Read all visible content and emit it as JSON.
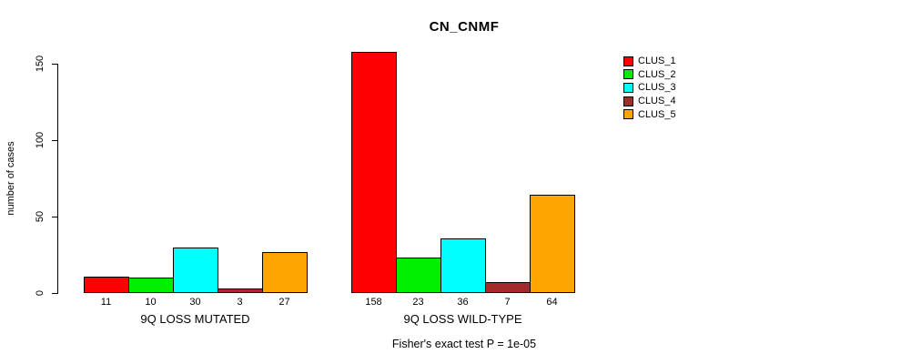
{
  "chart_data": {
    "type": "bar",
    "title": "CN_CNMF",
    "ylabel": "number of cases",
    "xlabel": "",
    "yticks": [
      0,
      50,
      100,
      150
    ],
    "ylim": [
      0,
      150
    ],
    "grid": false,
    "legend_position": "right",
    "series": [
      {
        "name": "CLUS_1",
        "color": "#ff0000"
      },
      {
        "name": "CLUS_2",
        "color": "#00ee00"
      },
      {
        "name": "CLUS_3",
        "color": "#00ffff"
      },
      {
        "name": "CLUS_4",
        "color": "#a52a2a"
      },
      {
        "name": "CLUS_5",
        "color": "#ffa500"
      }
    ],
    "groups": [
      {
        "label": "9Q LOSS MUTATED",
        "values": [
          11,
          10,
          30,
          3,
          27
        ]
      },
      {
        "label": "9Q LOSS WILD-TYPE",
        "values": [
          158,
          23,
          36,
          7,
          64
        ]
      }
    ],
    "annotation": "Fisher's exact test P = 1e-05"
  }
}
